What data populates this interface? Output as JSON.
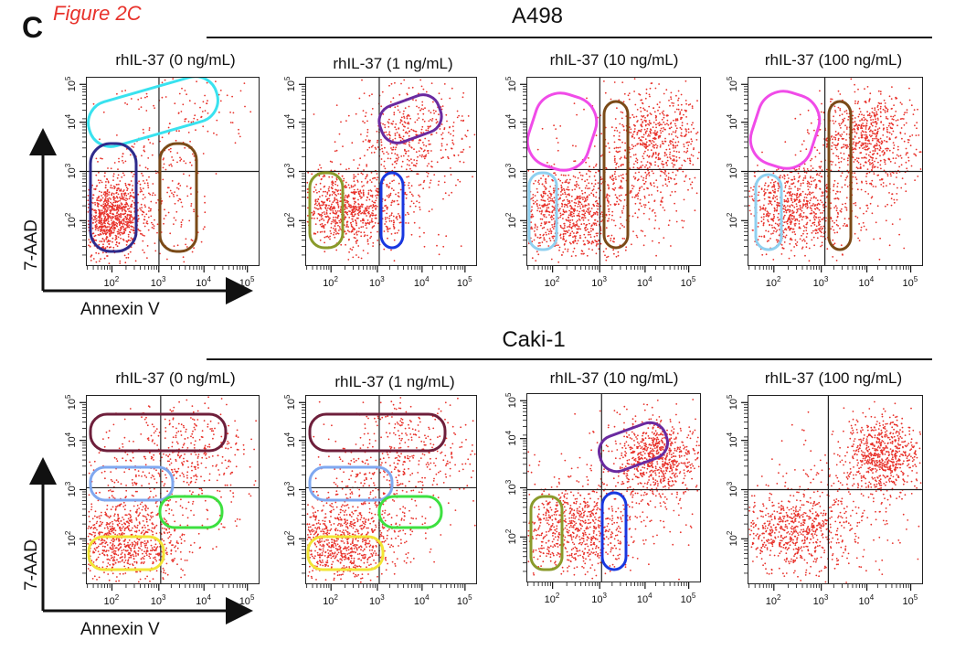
{
  "figure": {
    "title": "Figure 2C",
    "panel_letter": "C",
    "colors": {
      "dots": "#e8322b",
      "cyan": "#39e2ef",
      "navy": "#2e2b8c",
      "brown": "#7a4a17",
      "purple": "#6a2aa0",
      "olive": "#8a9a2a",
      "blue": "#1838e0",
      "magenta": "#f04be8",
      "lightblue": "#8fd0f0",
      "maroon": "#6e1f3b",
      "cornflower": "#7fa8f0",
      "green": "#3de040",
      "yellow": "#f2e536"
    }
  },
  "groups": [
    {
      "name": "A498",
      "x_label": "Annexin V",
      "y_label": "7-AAD",
      "conditions": [
        "rhIL-37 (0 ng/mL)",
        "rhIL-37 (1 ng/mL)",
        "rhIL-37 (10 ng/mL)",
        "rhIL-37 (100 ng/mL)"
      ]
    },
    {
      "name": "Caki-1",
      "x_label": "Annexin V",
      "y_label": "7-AAD",
      "conditions": [
        "rhIL-37 (0 ng/mL)",
        "rhIL-37 (1 ng/mL)",
        "rhIL-37 (10 ng/mL)",
        "rhIL-37 (100 ng/mL)"
      ]
    }
  ],
  "axis_ticks": {
    "x": [
      "10^2",
      "10^3",
      "10^4",
      "10^5"
    ],
    "y": [
      "10^2",
      "10^3",
      "10^4",
      "10^5"
    ]
  }
}
